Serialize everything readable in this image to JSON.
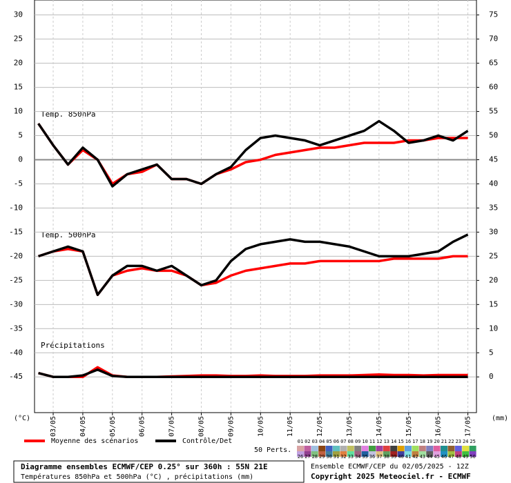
{
  "chart_data": {
    "type": "line",
    "annotations": [
      "Temp. 850hPa",
      "Temp. 500hPa",
      "Précipitations"
    ],
    "y_unit": "(°C)",
    "y2_unit": "(mm)",
    "x": [
      2.5,
      3,
      3.5,
      4,
      4.5,
      5,
      5.5,
      6,
      6.5,
      7,
      7.5,
      8,
      8.5,
      9,
      9.5,
      10,
      10.5,
      11,
      11.5,
      12,
      12.5,
      13,
      13.5,
      14,
      14.5,
      15,
      15.5,
      16,
      16.5,
      17
    ],
    "xlim": [
      2.37,
      17.29
    ],
    "xticks": [
      {
        "value": 3,
        "label": "03/05"
      },
      {
        "value": 4,
        "label": "04/05"
      },
      {
        "value": 5,
        "label": "05/05"
      },
      {
        "value": 6,
        "label": "06/05"
      },
      {
        "value": 7,
        "label": "07/05"
      },
      {
        "value": 8,
        "label": "08/05"
      },
      {
        "value": 9,
        "label": "09/05"
      },
      {
        "value": 10,
        "label": "10/05"
      },
      {
        "value": 11,
        "label": "11/05"
      },
      {
        "value": 12,
        "label": "12/05"
      },
      {
        "value": 13,
        "label": "13/05"
      },
      {
        "value": 14,
        "label": "14/05"
      },
      {
        "value": 15,
        "label": "15/05"
      },
      {
        "value": 16,
        "label": "16/05"
      },
      {
        "value": 17,
        "label": "17/05"
      }
    ],
    "ylim": [
      -52.4,
      33.1
    ],
    "yticks": [
      30,
      25,
      20,
      15,
      10,
      5,
      0,
      -5,
      -10,
      -15,
      -20,
      -25,
      -30,
      -35,
      -40,
      -45
    ],
    "y2lim": [
      -7.4,
      78.1
    ],
    "y2ticks": [
      75,
      70,
      65,
      60,
      55,
      50,
      45,
      40,
      35,
      30,
      25,
      20,
      15,
      10,
      5,
      0
    ],
    "grid": true,
    "series": [
      {
        "name": "Moyenne des scénarios",
        "color": "#ff0000",
        "axis": "y",
        "values": [
          7.5,
          3,
          -1,
          2,
          0,
          -5,
          -3,
          -2.5,
          -1,
          -4,
          -4,
          -5,
          -3,
          -2,
          -0.5,
          0,
          1,
          1.5,
          2,
          2.5,
          2.5,
          3,
          3.5,
          3.5,
          3.5,
          4,
          4,
          4.5,
          4.5,
          4.5
        ]
      },
      {
        "name": "Contrôle/Det",
        "color": "#000000",
        "axis": "y",
        "values": [
          7.5,
          3,
          -1,
          2.5,
          0,
          -5.5,
          -3,
          -2,
          -1,
          -4,
          -4,
          -5,
          -3,
          -1.5,
          2,
          4.5,
          5,
          4.5,
          4,
          3,
          4,
          5,
          6,
          8,
          6,
          3.5,
          4,
          5,
          4,
          6
        ]
      },
      {
        "color": "#ff0000",
        "axis": "y",
        "values": [
          -20,
          -19,
          -18.5,
          -19,
          -28,
          -24,
          -23,
          -22.5,
          -23,
          -23,
          -24,
          -26,
          -25.5,
          -24,
          -23,
          -22.5,
          -22,
          -21.5,
          -21.5,
          -21,
          -21,
          -21,
          -21,
          -21,
          -20.5,
          -20.5,
          -20.5,
          -20.5,
          -20,
          -20
        ]
      },
      {
        "color": "#000000",
        "axis": "y",
        "values": [
          -20,
          -19,
          -18,
          -19,
          -28,
          -24,
          -22,
          -22,
          -23,
          -22,
          -24,
          -26,
          -25,
          -21,
          -18.5,
          -17.5,
          -17,
          -16.5,
          -17,
          -17,
          -17.5,
          -18,
          -19,
          -20,
          -20,
          -20,
          -19.5,
          -19,
          -17,
          -15.5
        ]
      },
      {
        "color": "#ff0000",
        "axis": "y2",
        "values": [
          0.8,
          0,
          0,
          0,
          2,
          0.3,
          0,
          0,
          0,
          0.1,
          0.2,
          0.3,
          0.3,
          0.2,
          0.2,
          0.3,
          0.2,
          0.2,
          0.2,
          0.3,
          0.3,
          0.3,
          0.4,
          0.5,
          0.4,
          0.4,
          0.3,
          0.4,
          0.4,
          0.4
        ]
      },
      {
        "color": "#000000",
        "axis": "y2",
        "values": [
          0.8,
          0,
          0,
          0.3,
          1.5,
          0.2,
          0,
          0,
          0,
          0,
          0,
          0,
          0,
          0,
          0,
          0,
          0,
          0,
          0,
          0,
          0,
          0,
          0,
          0,
          0,
          0,
          0,
          0,
          0,
          0
        ]
      }
    ],
    "perturbations": {
      "label": "50 Perts.",
      "names": [
        "01",
        "02",
        "03",
        "04",
        "05",
        "06",
        "07",
        "08",
        "09",
        "10",
        "11",
        "12",
        "13",
        "14",
        "15",
        "16",
        "17",
        "18",
        "19",
        "20",
        "21",
        "22",
        "23",
        "24",
        "25",
        "26",
        "27",
        "28",
        "29",
        "30",
        "31",
        "32",
        "33",
        "34",
        "35",
        "36",
        "37",
        "38",
        "39",
        "40",
        "41",
        "42",
        "43",
        "44",
        "45",
        "46",
        "47",
        "48",
        "49",
        "50"
      ],
      "colors": [
        "#d9a3a3",
        "#c060a0",
        "#a0c0e0",
        "#8b4513",
        "#4060c0",
        "#60c0c0",
        "#b0b0b0",
        "#c0c060",
        "#808080",
        "#e080e0",
        "#40a040",
        "#a040a0",
        "#e04040",
        "#404040",
        "#e0a000",
        "#60a0e0",
        "#a0e060",
        "#c08080",
        "#8080c0",
        "#e060a0",
        "#209090",
        "#906030",
        "#6060e0",
        "#e0e040",
        "#30a060",
        "#c0a0e0",
        "#904090",
        "#80c080",
        "#c06040",
        "#4080a0",
        "#a0a040",
        "#e08040",
        "#60e0a0",
        "#a06080",
        "#2060a0",
        "#c0c0e0",
        "#e0c080",
        "#60a060",
        "#a02020",
        "#4040a0",
        "#80e0e0",
        "#c08040",
        "#a0e0a0",
        "#606060",
        "#e0a0e0",
        "#2090c0",
        "#a0c040",
        "#c04080",
        "#40c040",
        "#8040c0"
      ]
    },
    "footer": {
      "title": "Diagramme ensembles ECMWF/CEP 0.25° sur 360h : 55N 21E",
      "subtitle": "Températures 850hPa et 500hPa (°C) , précipitations (mm)",
      "run": "Ensemble ECMWF/CEP du 02/05/2025 - 12Z",
      "copyright": "Copyright 2025 Meteociel.fr - ECMWF"
    }
  }
}
